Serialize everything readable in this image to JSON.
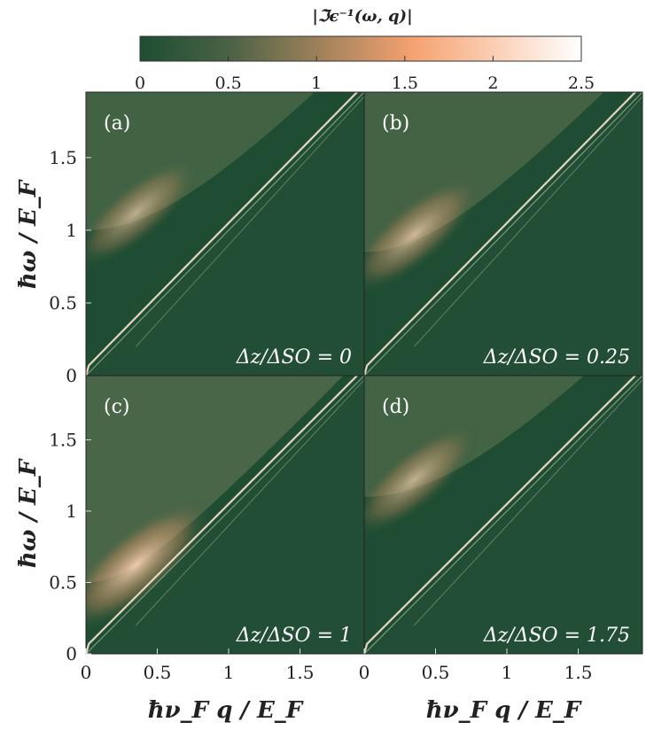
{
  "figure": {
    "colorbar_title": "|ℑϵ⁻¹(ω, q)|",
    "xlabel": "ħν_F q / E_F",
    "ylabel": "ħω / E_F"
  },
  "chart_data": {
    "type": "heatmap",
    "colorbar": {
      "title": "|ℑϵ⁻¹(ω, q)|",
      "range": [
        0,
        2.5
      ],
      "ticks": [
        "0",
        "0.5",
        "1",
        "1.5",
        "2",
        "2.5"
      ],
      "colors": [
        "#1e4d33",
        "#3c5a3a",
        "#f6a271",
        "#ffffff"
      ]
    },
    "panels": [
      {
        "label": "(a)",
        "annotation": "Δz/ΔSO = 0",
        "ratio": 0,
        "plasmon_start": 0.06,
        "gap": 1.0,
        "intensity": 0.55
      },
      {
        "label": "(b)",
        "annotation": "Δz/ΔSO = 0.25",
        "ratio": 0.25,
        "plasmon_start": 0.06,
        "gap": 0.85,
        "intensity": 0.7
      },
      {
        "label": "(c)",
        "annotation": "Δz/ΔSO = 1",
        "ratio": 1,
        "plasmon_start": 0.05,
        "gap": 0.5,
        "intensity": 1.0
      },
      {
        "label": "(d)",
        "annotation": "Δz/ΔSO = 1.75",
        "ratio": 1.75,
        "plasmon_start": 0.06,
        "gap": 1.1,
        "intensity": 0.6
      }
    ],
    "x_axis": {
      "label": "ħν_F q / E_F",
      "range": [
        0,
        1.95
      ],
      "ticks": [
        "0",
        "0.5",
        "1",
        "1.5"
      ]
    },
    "y_axis": {
      "label": "ħω / E_F",
      "range": [
        0,
        1.95
      ],
      "ticks": [
        "0",
        "0.5",
        "1",
        "1.5"
      ]
    },
    "background_color": "#1e4d33",
    "accent_color": "#f6a271"
  }
}
